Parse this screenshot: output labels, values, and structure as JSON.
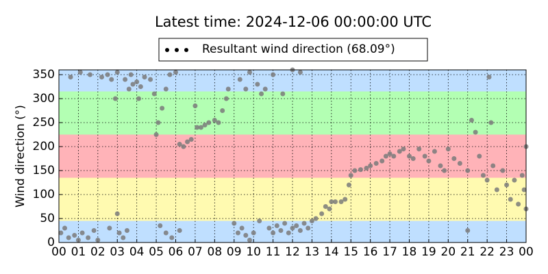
{
  "chart_data": {
    "type": "scatter",
    "title": "Latest time: 2024-12-06 00:00:00 UTC",
    "y_label": "Wind direction (°)",
    "xlim": [
      0,
      24
    ],
    "ylim": [
      0,
      360
    ],
    "xticks": [
      {
        "value": 0,
        "label": "00"
      },
      {
        "value": 1,
        "label": "01"
      },
      {
        "value": 2,
        "label": "02"
      },
      {
        "value": 3,
        "label": "03"
      },
      {
        "value": 4,
        "label": "04"
      },
      {
        "value": 5,
        "label": "05"
      },
      {
        "value": 6,
        "label": "06"
      },
      {
        "value": 7,
        "label": "07"
      },
      {
        "value": 8,
        "label": "08"
      },
      {
        "value": 9,
        "label": "09"
      },
      {
        "value": 10,
        "label": "10"
      },
      {
        "value": 11,
        "label": "11"
      },
      {
        "value": 12,
        "label": "12"
      },
      {
        "value": 13,
        "label": "13"
      },
      {
        "value": 14,
        "label": "14"
      },
      {
        "value": 15,
        "label": "15"
      },
      {
        "value": 16,
        "label": "16"
      },
      {
        "value": 17,
        "label": "17"
      },
      {
        "value": 18,
        "label": "18"
      },
      {
        "value": 19,
        "label": "19"
      },
      {
        "value": 20,
        "label": "20"
      },
      {
        "value": 21,
        "label": "21"
      },
      {
        "value": 22,
        "label": "22"
      },
      {
        "value": 23,
        "label": "23"
      },
      {
        "value": 24,
        "label": "00"
      }
    ],
    "yticks": [
      0,
      50,
      100,
      150,
      200,
      250,
      300,
      350
    ],
    "grid": true,
    "bands": [
      {
        "from": 0,
        "to": 45,
        "color": "#bfdfff"
      },
      {
        "from": 45,
        "to": 135,
        "color": "#fffab0"
      },
      {
        "from": 135,
        "to": 225,
        "color": "#ffb3b8"
      },
      {
        "from": 225,
        "to": 315,
        "color": "#b3ffb3"
      },
      {
        "from": 315,
        "to": 360,
        "color": "#bfdfff"
      }
    ],
    "legend_color": "#000000",
    "series": [
      {
        "name": "Resultant wind direction (68.09°)",
        "color": "#7a7a7a",
        "x": [
          0.1,
          0.3,
          0.5,
          0.8,
          1.0,
          1.2,
          1.5,
          1.8,
          2.0,
          0.6,
          1.1,
          1.6,
          2.2,
          2.5,
          2.7,
          3.0,
          2.9,
          2.6,
          3.1,
          3.3,
          3.5,
          3.0,
          3.4,
          3.6,
          3.8,
          4.0,
          4.2,
          4.4,
          4.1,
          3.7,
          4.7,
          4.9,
          5.0,
          5.1,
          5.3,
          5.5,
          5.7,
          6.0,
          5.2,
          5.5,
          5.8,
          6.2,
          6.2,
          6.4,
          6.6,
          6.8,
          7.0,
          7.1,
          7.3,
          7.5,
          7.7,
          8.0,
          8.2,
          8.4,
          8.6,
          8.7,
          9.0,
          9.2,
          9.4,
          9.6,
          9.8,
          10.0,
          9.3,
          9.6,
          9.8,
          10.2,
          10.4,
          10.6,
          10.3,
          10.8,
          11.0,
          11.2,
          11.4,
          11.6,
          11.8,
          12.0,
          12.2,
          12.4,
          12.6,
          12.8,
          13.0,
          13.2,
          11.0,
          11.5,
          12.0,
          12.4,
          13.5,
          13.7,
          13.9,
          14.0,
          14.2,
          14.5,
          14.7,
          14.9,
          15.0,
          15.2,
          15.5,
          15.8,
          16.0,
          16.3,
          16.6,
          16.8,
          17.0,
          17.2,
          17.5,
          17.7,
          18.0,
          18.2,
          18.5,
          18.8,
          19.0,
          19.3,
          19.6,
          19.8,
          20.0,
          20.3,
          20.6,
          21.0,
          21.2,
          21.4,
          21.6,
          21.8,
          22.0,
          22.2,
          22.3,
          22.5,
          22.8,
          23.0,
          23.2,
          23.4,
          23.6,
          23.8,
          24.0,
          24.0,
          21.0,
          22.1,
          23.9
        ],
        "values": [
          20,
          30,
          10,
          15,
          5,
          20,
          10,
          25,
          5,
          345,
          355,
          350,
          345,
          350,
          340,
          355,
          300,
          30,
          20,
          10,
          25,
          60,
          340,
          320,
          330,
          335,
          325,
          345,
          300,
          350,
          340,
          310,
          225,
          250,
          280,
          320,
          350,
          355,
          35,
          20,
          10,
          25,
          205,
          200,
          210,
          215,
          285,
          240,
          240,
          245,
          250,
          255,
          250,
          275,
          300,
          320,
          40,
          20,
          30,
          15,
          5,
          20,
          340,
          320,
          355,
          330,
          310,
          320,
          45,
          30,
          20,
          35,
          25,
          40,
          20,
          30,
          35,
          25,
          40,
          30,
          45,
          50,
          350,
          310,
          360,
          355,
          60,
          75,
          70,
          85,
          85,
          85,
          90,
          120,
          140,
          150,
          152,
          155,
          160,
          165,
          170,
          180,
          185,
          180,
          190,
          195,
          180,
          175,
          195,
          180,
          170,
          190,
          160,
          150,
          195,
          175,
          165,
          150,
          255,
          230,
          180,
          140,
          130,
          250,
          160,
          110,
          150,
          120,
          90,
          130,
          80,
          140,
          200,
          70,
          25,
          345,
          110
        ]
      }
    ]
  }
}
